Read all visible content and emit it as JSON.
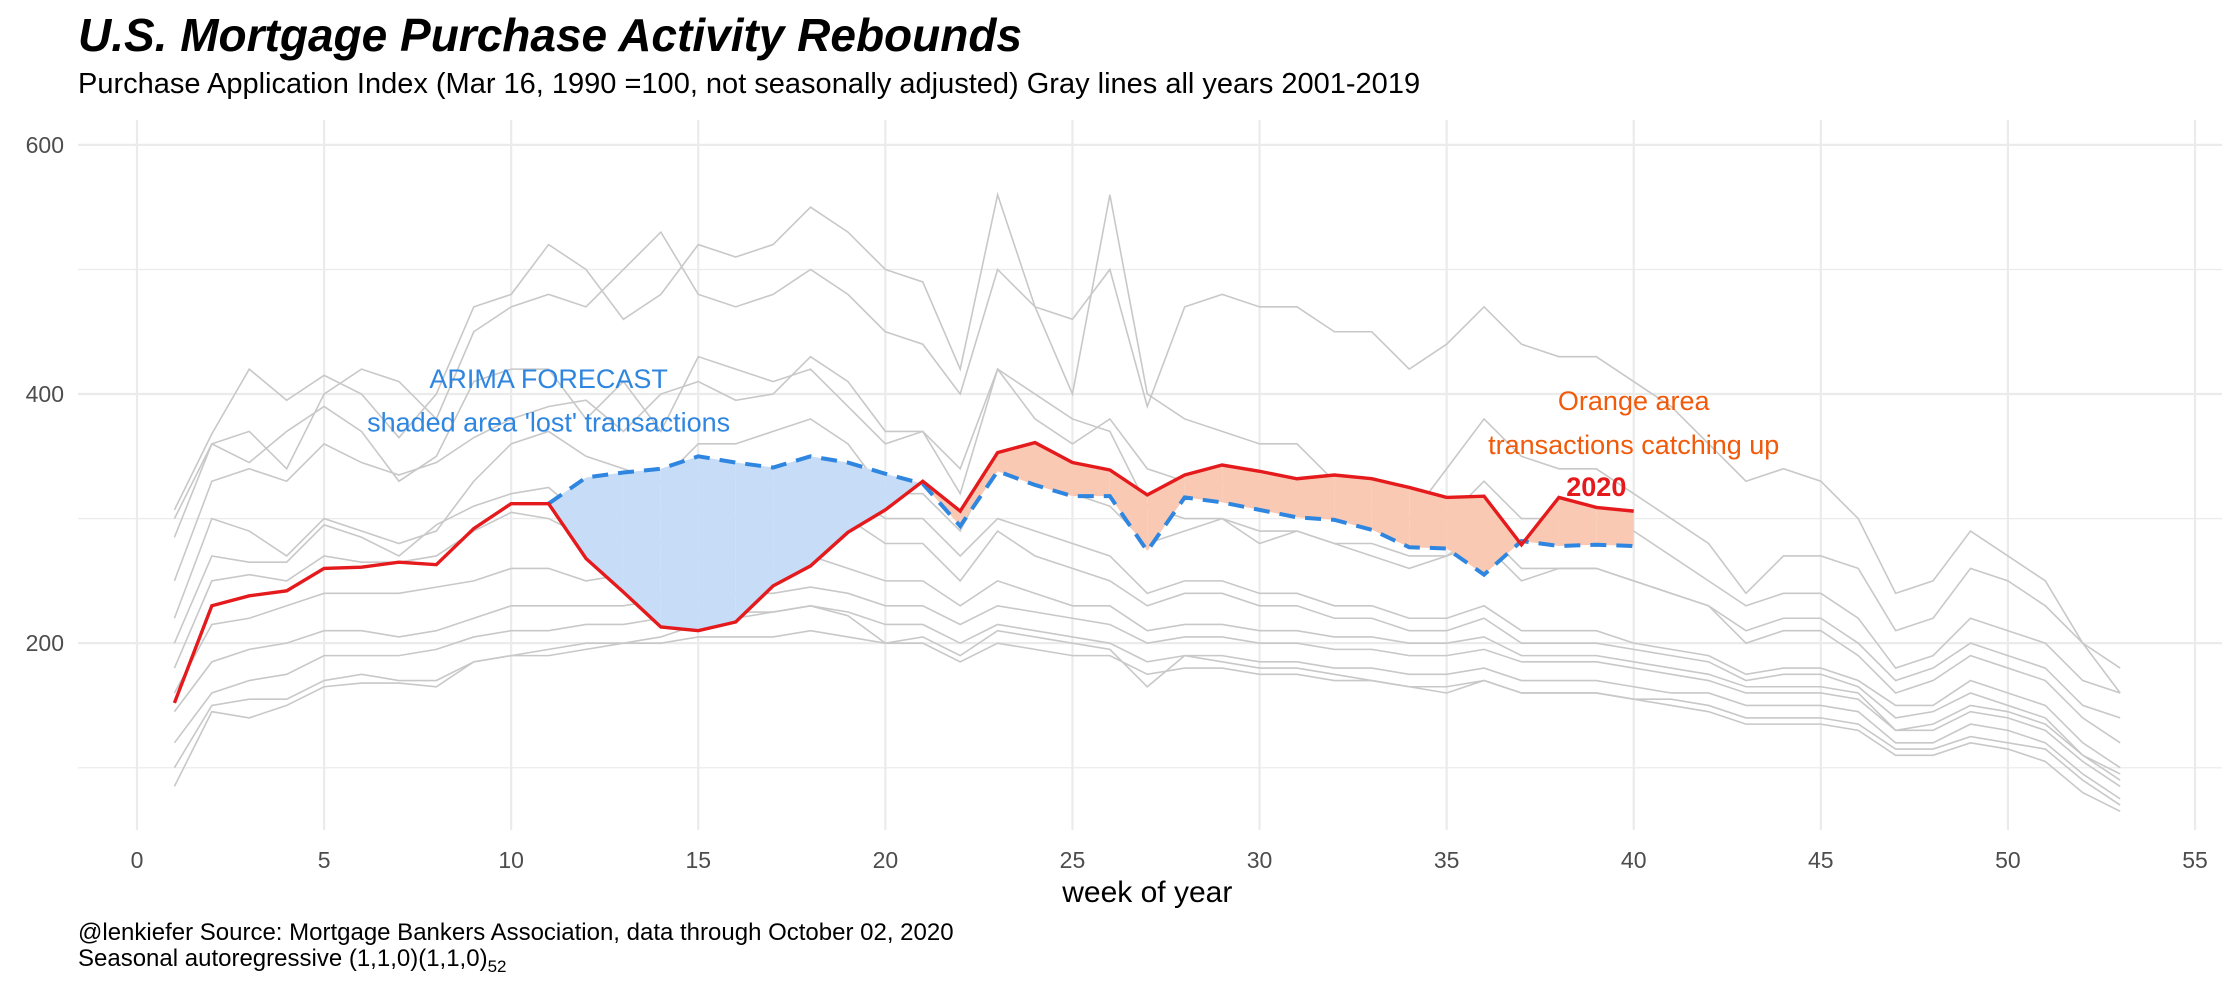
{
  "title": "U.S. Mortgage Purchase Activity Rebounds",
  "subtitle": "Purchase Application Index (Mar 16, 1990 =100, not seasonally adjusted) Gray lines all years 2001-2019",
  "caption_line1": "@lenkiefer Source: Mortgage Bankers Association, data through October 02, 2020",
  "caption_line2_main": "Seasonal autoregressive (1,1,0)(1,1,0)",
  "caption_line2_sub": "52",
  "colors": {
    "actual_2020": "#e41a1c",
    "forecast": "#2f86e0",
    "lost_fill": "#c6dcf7",
    "gain_fill": "#f9c9b3",
    "gray_lines": "#c8c8c8",
    "grid": "#ebebeb",
    "orange_text": "#f05a0a"
  },
  "chart_data": {
    "type": "line",
    "xlabel": "week of year",
    "ylabel": "",
    "xlim": [
      0,
      55
    ],
    "ylim": [
      50,
      620
    ],
    "x_ticks": [
      0,
      5,
      10,
      15,
      20,
      25,
      30,
      35,
      40,
      45,
      50,
      55
    ],
    "y_ticks": [
      200,
      400,
      600
    ],
    "grid": true,
    "annotations": {
      "forecast_title": {
        "text": "ARIMA FORECAST",
        "x": 11,
        "y": 405,
        "color": "#2f86e0"
      },
      "forecast_sub": {
        "text": "shaded area 'lost' transactions",
        "x": 11,
        "y": 370,
        "color": "#2f86e0"
      },
      "orange_title": {
        "text": "Orange area",
        "x": 40,
        "y": 387,
        "color": "#f05a0a"
      },
      "orange_sub": {
        "text": "transactions catching up",
        "x": 40,
        "y": 352,
        "color": "#f05a0a"
      },
      "year_label": {
        "text": "2020",
        "x": 39,
        "y": 318,
        "color": "#e41a1c"
      }
    },
    "series": [
      {
        "name": "2020",
        "x": [
          1,
          2,
          3,
          4,
          5,
          6,
          7,
          8,
          9,
          10,
          11,
          12,
          13,
          14,
          15,
          16,
          17,
          18,
          19,
          20,
          21,
          22,
          23,
          24,
          25,
          26,
          27,
          28,
          29,
          30,
          31,
          32,
          33,
          34,
          35,
          36,
          37,
          38,
          39,
          40
        ],
        "values": [
          152,
          230,
          238,
          242,
          260,
          261,
          265,
          263,
          292,
          312,
          312,
          268,
          241,
          213,
          210,
          217,
          246,
          262,
          289,
          307,
          330,
          306,
          353,
          361,
          345,
          339,
          319,
          335,
          343,
          338,
          332,
          335,
          332,
          325,
          317,
          318,
          279,
          317,
          309,
          306
        ]
      },
      {
        "name": "ARIMA forecast",
        "x": [
          11,
          12,
          13,
          14,
          15,
          16,
          17,
          18,
          19,
          20,
          21,
          22,
          23,
          24,
          25,
          26,
          27,
          28,
          29,
          30,
          31,
          32,
          33,
          34,
          35,
          36,
          37,
          38,
          39,
          40
        ],
        "values": [
          312,
          333,
          337,
          340,
          350,
          345,
          341,
          350,
          345,
          336,
          328,
          294,
          338,
          327,
          318,
          318,
          274,
          317,
          313,
          307,
          301,
          299,
          291,
          277,
          276,
          255,
          282,
          278,
          279,
          278
        ]
      }
    ],
    "background_series": [
      [
        307,
        368,
        420,
        395,
        415,
        400,
        365,
        400,
        470,
        480,
        520,
        500,
        460,
        480,
        520,
        510,
        520,
        550,
        530,
        500,
        490,
        420,
        560,
        470,
        400,
        560,
        400,
        380,
        370,
        360,
        360,
        330,
        330,
        300,
        340,
        380,
        350,
        340,
        340,
        320,
        300,
        280,
        240,
        270,
        270,
        260,
        210,
        220,
        260,
        250,
        230,
        200,
        180
      ],
      [
        285,
        360,
        345,
        370,
        390,
        370,
        330,
        350,
        410,
        420,
        420,
        380,
        410,
        370,
        430,
        420,
        410,
        420,
        390,
        360,
        370,
        320,
        420,
        380,
        360,
        380,
        340,
        330,
        330,
        320,
        320,
        300,
        310,
        290,
        300,
        330,
        300,
        300,
        300,
        290,
        270,
        250,
        230,
        240,
        240,
        220,
        180,
        190,
        220,
        210,
        200,
        170,
        160
      ],
      [
        250,
        330,
        340,
        330,
        360,
        345,
        335,
        345,
        365,
        380,
        390,
        395,
        370,
        400,
        410,
        395,
        400,
        430,
        410,
        370,
        370,
        340,
        420,
        400,
        380,
        370,
        310,
        300,
        300,
        290,
        290,
        280,
        270,
        260,
        270,
        290,
        260,
        260,
        260,
        250,
        240,
        230,
        210,
        220,
        220,
        200,
        170,
        180,
        200,
        190,
        180,
        150,
        140
      ],
      [
        220,
        300,
        290,
        270,
        300,
        290,
        280,
        290,
        330,
        360,
        370,
        350,
        340,
        330,
        360,
        360,
        370,
        380,
        360,
        320,
        320,
        290,
        350,
        330,
        320,
        310,
        280,
        290,
        300,
        280,
        290,
        280,
        280,
        270,
        270,
        280,
        250,
        260,
        260,
        250,
        240,
        230,
        200,
        210,
        210,
        190,
        160,
        170,
        190,
        180,
        170,
        140,
        120
      ],
      [
        200,
        270,
        265,
        265,
        295,
        285,
        270,
        295,
        310,
        320,
        325,
        300,
        300,
        305,
        335,
        335,
        330,
        335,
        320,
        300,
        300,
        270,
        300,
        290,
        280,
        270,
        240,
        250,
        250,
        240,
        240,
        230,
        230,
        220,
        220,
        230,
        210,
        210,
        210,
        200,
        195,
        190,
        175,
        180,
        180,
        170,
        150,
        150,
        170,
        160,
        150,
        120,
        100
      ],
      [
        180,
        250,
        255,
        250,
        270,
        265,
        265,
        270,
        290,
        305,
        300,
        285,
        285,
        280,
        310,
        300,
        305,
        320,
        300,
        280,
        280,
        250,
        290,
        270,
        260,
        250,
        230,
        240,
        240,
        230,
        230,
        220,
        220,
        210,
        210,
        220,
        200,
        200,
        200,
        195,
        190,
        185,
        170,
        175,
        175,
        165,
        140,
        145,
        160,
        150,
        140,
        110,
        95
      ],
      [
        160,
        215,
        220,
        230,
        240,
        240,
        240,
        245,
        250,
        260,
        260,
        250,
        255,
        255,
        270,
        265,
        270,
        270,
        260,
        250,
        250,
        230,
        250,
        240,
        230,
        230,
        210,
        215,
        215,
        210,
        210,
        205,
        205,
        200,
        200,
        205,
        190,
        190,
        190,
        185,
        180,
        175,
        165,
        165,
        165,
        160,
        130,
        135,
        150,
        145,
        135,
        110,
        90
      ],
      [
        145,
        185,
        195,
        200,
        210,
        210,
        205,
        210,
        220,
        230,
        230,
        230,
        230,
        235,
        240,
        240,
        240,
        245,
        240,
        230,
        230,
        215,
        230,
        225,
        220,
        215,
        200,
        205,
        205,
        200,
        200,
        195,
        195,
        190,
        190,
        195,
        185,
        185,
        185,
        180,
        175,
        170,
        160,
        160,
        160,
        155,
        130,
        130,
        145,
        140,
        130,
        105,
        85
      ],
      [
        120,
        160,
        170,
        175,
        190,
        190,
        190,
        195,
        205,
        210,
        210,
        215,
        215,
        220,
        225,
        225,
        225,
        230,
        225,
        215,
        215,
        200,
        215,
        210,
        205,
        200,
        185,
        190,
        190,
        185,
        185,
        180,
        180,
        175,
        175,
        180,
        170,
        170,
        170,
        165,
        160,
        160,
        150,
        150,
        150,
        145,
        120,
        120,
        135,
        130,
        120,
        95,
        75
      ],
      [
        100,
        150,
        155,
        155,
        170,
        175,
        170,
        170,
        185,
        190,
        190,
        195,
        200,
        200,
        205,
        205,
        205,
        210,
        205,
        200,
        200,
        185,
        200,
        195,
        190,
        190,
        175,
        180,
        180,
        175,
        175,
        170,
        170,
        165,
        165,
        170,
        160,
        160,
        160,
        155,
        155,
        150,
        140,
        140,
        140,
        135,
        115,
        115,
        125,
        120,
        115,
        90,
        70
      ],
      [
        85,
        145,
        140,
        150,
        165,
        168,
        168,
        165,
        185,
        190,
        195,
        200,
        200,
        205,
        215,
        220,
        225,
        230,
        222,
        200,
        205,
        190,
        210,
        205,
        200,
        195,
        165,
        190,
        185,
        180,
        180,
        175,
        170,
        165,
        160,
        170,
        160,
        160,
        160,
        155,
        150,
        145,
        135,
        135,
        135,
        130,
        110,
        110,
        120,
        115,
        105,
        80,
        65
      ],
      [
        300,
        360,
        370,
        340,
        400,
        420,
        410,
        380,
        450,
        470,
        480,
        470,
        500,
        530,
        480,
        470,
        480,
        500,
        480,
        450,
        440,
        400,
        500,
        470,
        460,
        500,
        390,
        470,
        480,
        470,
        470,
        450,
        450,
        420,
        440,
        470,
        440,
        430,
        430,
        410,
        390,
        360,
        330,
        340,
        330,
        300,
        240,
        250,
        290,
        270,
        250,
        200,
        160
      ]
    ]
  }
}
